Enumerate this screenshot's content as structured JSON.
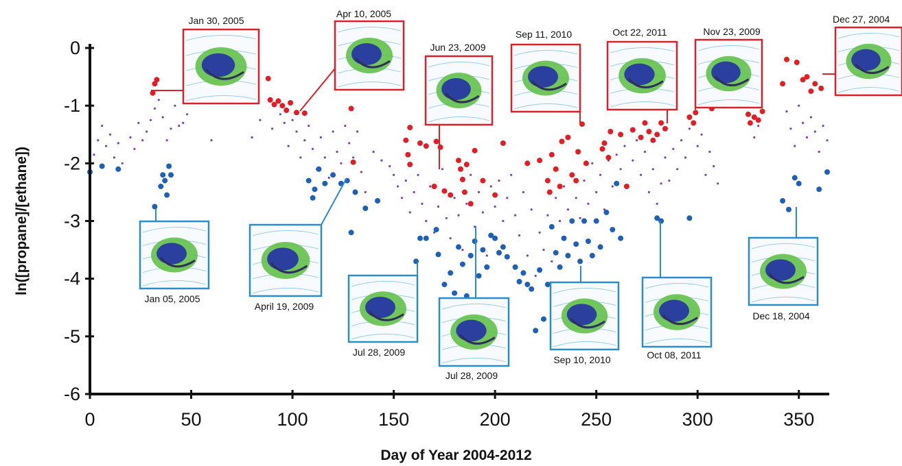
{
  "chart_data": {
    "type": "scatter",
    "xlabel": "Day of Year 2004-2012",
    "ylabel": "ln([propane]/[ethane])",
    "xlim": [
      0,
      365
    ],
    "ylim": [
      -6,
      0
    ],
    "x_ticks": [
      0,
      50,
      100,
      150,
      200,
      250,
      300,
      350
    ],
    "y_ticks": [
      0,
      -1,
      -2,
      -3,
      -4,
      -5,
      -6
    ],
    "grid": false,
    "colors": {
      "red": "#e21d26",
      "blue": "#1f5fb8",
      "purple": "#7a43a8",
      "red_frame": "#d9212a",
      "blue_frame": "#2a8cc8"
    },
    "series": [
      {
        "color": "red",
        "points": [
          [
            31,
            -0.78
          ],
          [
            32,
            -0.62
          ],
          [
            33,
            -0.55
          ],
          [
            88,
            -0.53
          ],
          [
            89,
            -0.9
          ],
          [
            91,
            -0.98
          ],
          [
            93,
            -0.92
          ],
          [
            95,
            -1.0
          ],
          [
            97,
            -1.08
          ],
          [
            99,
            -0.95
          ],
          [
            102,
            -1.12
          ],
          [
            106,
            -1.13
          ],
          [
            129,
            -1.05
          ],
          [
            130,
            -1.98
          ],
          [
            156,
            -1.6
          ],
          [
            157,
            -1.85
          ],
          [
            158,
            -1.38
          ],
          [
            158,
            -2.02
          ],
          [
            163,
            -1.65
          ],
          [
            166,
            -1.7
          ],
          [
            170,
            -2.4
          ],
          [
            171,
            -1.62
          ],
          [
            173,
            -1.72
          ],
          [
            175,
            -2.48
          ],
          [
            178,
            -2.55
          ],
          [
            182,
            -1.95
          ],
          [
            183,
            -2.1
          ],
          [
            184,
            -2.28
          ],
          [
            185,
            -2.5
          ],
          [
            186,
            -2.02
          ],
          [
            188,
            -2.7
          ],
          [
            190,
            -1.78
          ],
          [
            194,
            -2.3
          ],
          [
            200,
            -2.55
          ],
          [
            204,
            -1.65
          ],
          [
            216,
            -2.0
          ],
          [
            222,
            -1.95
          ],
          [
            226,
            -2.3
          ],
          [
            227,
            -2.5
          ],
          [
            228,
            -1.85
          ],
          [
            230,
            -2.1
          ],
          [
            232,
            -2.4
          ],
          [
            233,
            -1.62
          ],
          [
            236,
            -1.55
          ],
          [
            238,
            -2.2
          ],
          [
            240,
            -2.3
          ],
          [
            241,
            -1.8
          ],
          [
            243,
            -1.32
          ],
          [
            245,
            -2.0
          ],
          [
            253,
            -1.75
          ],
          [
            254,
            -1.65
          ],
          [
            256,
            -1.9
          ],
          [
            257,
            -1.45
          ],
          [
            262,
            -1.5
          ],
          [
            265,
            -2.4
          ],
          [
            268,
            -1.42
          ],
          [
            272,
            -1.55
          ],
          [
            274,
            -1.3
          ],
          [
            276,
            -1.45
          ],
          [
            278,
            -1.6
          ],
          [
            280,
            -1.5
          ],
          [
            282,
            -1.3
          ],
          [
            284,
            -1.4
          ],
          [
            296,
            -1.2
          ],
          [
            298,
            -1.3
          ],
          [
            299,
            -1.12
          ],
          [
            305,
            -0.95
          ],
          [
            307,
            -1.05
          ],
          [
            325,
            -1.15
          ],
          [
            326,
            -1.3
          ],
          [
            328,
            -1.2
          ],
          [
            330,
            -1.25
          ],
          [
            332,
            -1.1
          ],
          [
            342,
            -0.62
          ],
          [
            344,
            -0.2
          ],
          [
            349,
            -0.25
          ],
          [
            352,
            -0.55
          ],
          [
            354,
            -0.5
          ],
          [
            356,
            -0.75
          ],
          [
            358,
            -0.62
          ],
          [
            361,
            -0.7
          ]
        ]
      },
      {
        "color": "blue",
        "points": [
          [
            0,
            -2.15
          ],
          [
            6,
            -2.05
          ],
          [
            14,
            -2.1
          ],
          [
            32,
            -2.75
          ],
          [
            35,
            -2.4
          ],
          [
            36,
            -2.2
          ],
          [
            37,
            -2.3
          ],
          [
            38,
            -2.55
          ],
          [
            39,
            -2.05
          ],
          [
            40,
            -2.2
          ],
          [
            108,
            -2.3
          ],
          [
            110,
            -2.6
          ],
          [
            111,
            -2.45
          ],
          [
            113,
            -2.1
          ],
          [
            116,
            -2.35
          ],
          [
            120,
            -2.2
          ],
          [
            124,
            -2.35
          ],
          [
            127,
            -2.3
          ],
          [
            129,
            -3.2
          ],
          [
            131,
            -2.5
          ],
          [
            136,
            -2.78
          ],
          [
            142,
            -2.65
          ],
          [
            161,
            -3.7
          ],
          [
            163,
            -3.3
          ],
          [
            166,
            -3.3
          ],
          [
            171,
            -3.15
          ],
          [
            172,
            -3.58
          ],
          [
            175,
            -4.1
          ],
          [
            178,
            -3.9
          ],
          [
            180,
            -4.25
          ],
          [
            182,
            -3.45
          ],
          [
            184,
            -3.75
          ],
          [
            186,
            -4.3
          ],
          [
            188,
            -3.6
          ],
          [
            190,
            -3.35
          ],
          [
            192,
            -3.95
          ],
          [
            194,
            -3.5
          ],
          [
            196,
            -3.8
          ],
          [
            198,
            -3.25
          ],
          [
            200,
            -3.3
          ],
          [
            202,
            -3.55
          ],
          [
            204,
            -3.45
          ],
          [
            206,
            -3.62
          ],
          [
            210,
            -3.8
          ],
          [
            212,
            -4.05
          ],
          [
            214,
            -3.9
          ],
          [
            216,
            -4.1
          ],
          [
            218,
            -4.18
          ],
          [
            220,
            -4.9
          ],
          [
            222,
            -3.85
          ],
          [
            224,
            -4.7
          ],
          [
            226,
            -4.1
          ],
          [
            228,
            -3.1
          ],
          [
            230,
            -3.55
          ],
          [
            232,
            -3.8
          ],
          [
            234,
            -3.3
          ],
          [
            236,
            -3.6
          ],
          [
            238,
            -3.0
          ],
          [
            240,
            -3.4
          ],
          [
            242,
            -3.7
          ],
          [
            244,
            -3.0
          ],
          [
            246,
            -3.35
          ],
          [
            248,
            -3.6
          ],
          [
            250,
            -3.0
          ],
          [
            252,
            -3.45
          ],
          [
            255,
            -2.85
          ],
          [
            258,
            -3.15
          ],
          [
            260,
            -2.35
          ],
          [
            262,
            -3.3
          ],
          [
            280,
            -2.95
          ],
          [
            282,
            -3.0
          ],
          [
            296,
            -2.95
          ],
          [
            342,
            -2.65
          ],
          [
            345,
            -2.8
          ],
          [
            348,
            -2.25
          ],
          [
            350,
            -2.35
          ],
          [
            360,
            -2.45
          ],
          [
            364,
            -2.15
          ]
        ]
      },
      {
        "color": "purple",
        "points": [
          [
            2,
            -1.85
          ],
          [
            4,
            -1.6
          ],
          [
            6,
            -1.35
          ],
          [
            8,
            -1.7
          ],
          [
            10,
            -1.5
          ],
          [
            12,
            -1.9
          ],
          [
            14,
            -1.65
          ],
          [
            16,
            -2.0
          ],
          [
            20,
            -1.55
          ],
          [
            22,
            -1.75
          ],
          [
            24,
            -1.3
          ],
          [
            26,
            -1.6
          ],
          [
            28,
            -1.45
          ],
          [
            30,
            -1.25
          ],
          [
            32,
            -1.05
          ],
          [
            34,
            -0.9
          ],
          [
            36,
            -1.2
          ],
          [
            38,
            -1.6
          ],
          [
            40,
            -1.4
          ],
          [
            42,
            -1.0
          ],
          [
            44,
            -1.35
          ],
          [
            46,
            -1.3
          ],
          [
            48,
            -1.15
          ],
          [
            60,
            -1.6
          ],
          [
            80,
            -1.55
          ],
          [
            84,
            -1.25
          ],
          [
            90,
            -1.4
          ],
          [
            94,
            -1.15
          ],
          [
            96,
            -1.3
          ],
          [
            98,
            -1.7
          ],
          [
            100,
            -1.25
          ],
          [
            102,
            -1.45
          ],
          [
            104,
            -1.9
          ],
          [
            106,
            -1.6
          ],
          [
            108,
            -1.35
          ],
          [
            110,
            -1.75
          ],
          [
            112,
            -2.1
          ],
          [
            114,
            -1.55
          ],
          [
            116,
            -1.9
          ],
          [
            118,
            -2.25
          ],
          [
            120,
            -1.45
          ],
          [
            122,
            -1.8
          ],
          [
            124,
            -2.0
          ],
          [
            126,
            -1.35
          ],
          [
            128,
            -1.65
          ],
          [
            130,
            -1.9
          ],
          [
            132,
            -1.45
          ],
          [
            134,
            -2.15
          ],
          [
            136,
            -2.5
          ],
          [
            140,
            -1.8
          ],
          [
            144,
            -1.95
          ],
          [
            148,
            -2.05
          ],
          [
            150,
            -2.2
          ],
          [
            152,
            -2.4
          ],
          [
            154,
            -2.6
          ],
          [
            156,
            -2.3
          ],
          [
            158,
            -2.85
          ],
          [
            160,
            -2.5
          ],
          [
            162,
            -2.2
          ],
          [
            164,
            -2.7
          ],
          [
            166,
            -3.0
          ],
          [
            168,
            -2.4
          ],
          [
            170,
            -3.2
          ],
          [
            172,
            -2.75
          ],
          [
            174,
            -2.1
          ],
          [
            176,
            -2.95
          ],
          [
            178,
            -3.3
          ],
          [
            180,
            -2.6
          ],
          [
            182,
            -2.9
          ],
          [
            184,
            -3.5
          ],
          [
            186,
            -2.7
          ],
          [
            188,
            -2.2
          ],
          [
            190,
            -3.1
          ],
          [
            192,
            -2.5
          ],
          [
            194,
            -2.85
          ],
          [
            196,
            -3.6
          ],
          [
            198,
            -2.4
          ],
          [
            200,
            -2.75
          ],
          [
            202,
            -2.3
          ],
          [
            204,
            -3.0
          ],
          [
            206,
            -2.6
          ],
          [
            208,
            -2.2
          ],
          [
            210,
            -2.9
          ],
          [
            212,
            -3.25
          ],
          [
            214,
            -2.5
          ],
          [
            216,
            -3.6
          ],
          [
            218,
            -2.8
          ],
          [
            220,
            -3.95
          ],
          [
            222,
            -3.2
          ],
          [
            224,
            -3.5
          ],
          [
            226,
            -2.9
          ],
          [
            228,
            -3.7
          ],
          [
            230,
            -2.6
          ],
          [
            232,
            -3.0
          ],
          [
            234,
            -2.4
          ],
          [
            236,
            -2.8
          ],
          [
            238,
            -2.2
          ],
          [
            240,
            -2.6
          ],
          [
            242,
            -2.95
          ],
          [
            244,
            -2.3
          ],
          [
            246,
            -2.7
          ],
          [
            248,
            -2.0
          ],
          [
            250,
            -2.5
          ],
          [
            252,
            -2.2
          ],
          [
            254,
            -2.8
          ],
          [
            256,
            -1.95
          ],
          [
            258,
            -2.4
          ],
          [
            260,
            -1.85
          ],
          [
            262,
            -2.1
          ],
          [
            264,
            -1.7
          ],
          [
            268,
            -1.95
          ],
          [
            270,
            -1.6
          ],
          [
            272,
            -2.2
          ],
          [
            274,
            -1.8
          ],
          [
            276,
            -2.5
          ],
          [
            278,
            -2.1
          ],
          [
            280,
            -2.7
          ],
          [
            282,
            -2.35
          ],
          [
            284,
            -1.9
          ],
          [
            286,
            -2.3
          ],
          [
            288,
            -1.75
          ],
          [
            290,
            -2.1
          ],
          [
            292,
            -1.6
          ],
          [
            294,
            -1.9
          ],
          [
            296,
            -1.4
          ],
          [
            300,
            -1.7
          ],
          [
            302,
            -1.5
          ],
          [
            304,
            -2.2
          ],
          [
            306,
            -1.8
          ],
          [
            308,
            -2.05
          ],
          [
            310,
            -2.35
          ],
          [
            326,
            -1.3
          ],
          [
            328,
            -1.55
          ],
          [
            330,
            -1.35
          ],
          [
            344,
            -1.1
          ],
          [
            346,
            -1.4
          ],
          [
            348,
            -1.7
          ],
          [
            350,
            -1.0
          ],
          [
            352,
            -1.3
          ],
          [
            354,
            -1.55
          ],
          [
            356,
            -1.2
          ],
          [
            358,
            -1.45
          ],
          [
            360,
            -1.8
          ],
          [
            362,
            -1.35
          ],
          [
            364,
            -1.6
          ]
        ]
      }
    ],
    "insets": [
      {
        "label": "Jan 30, 2005",
        "frame": "red"
      },
      {
        "label": "Apr 10, 2005",
        "frame": "red"
      },
      {
        "label": "Jun 23, 2009",
        "frame": "red"
      },
      {
        "label": "Sep 11, 2010",
        "frame": "red"
      },
      {
        "label": "Oct 22, 2011",
        "frame": "red"
      },
      {
        "label": "Nov 23, 2009",
        "frame": "red"
      },
      {
        "label": "Dec 27, 2004",
        "frame": "red"
      },
      {
        "label": "Jan 05, 2005",
        "frame": "blue"
      },
      {
        "label": "April 19, 2009",
        "frame": "blue"
      },
      {
        "label": "Jul 28, 2009",
        "frame": "blue"
      },
      {
        "label": "Jul 28, 2009",
        "frame": "blue"
      },
      {
        "label": "Sep 10, 2010",
        "frame": "blue"
      },
      {
        "label": "Oct 08, 2011",
        "frame": "blue"
      },
      {
        "label": "Dec 18, 2004",
        "frame": "blue"
      }
    ]
  }
}
